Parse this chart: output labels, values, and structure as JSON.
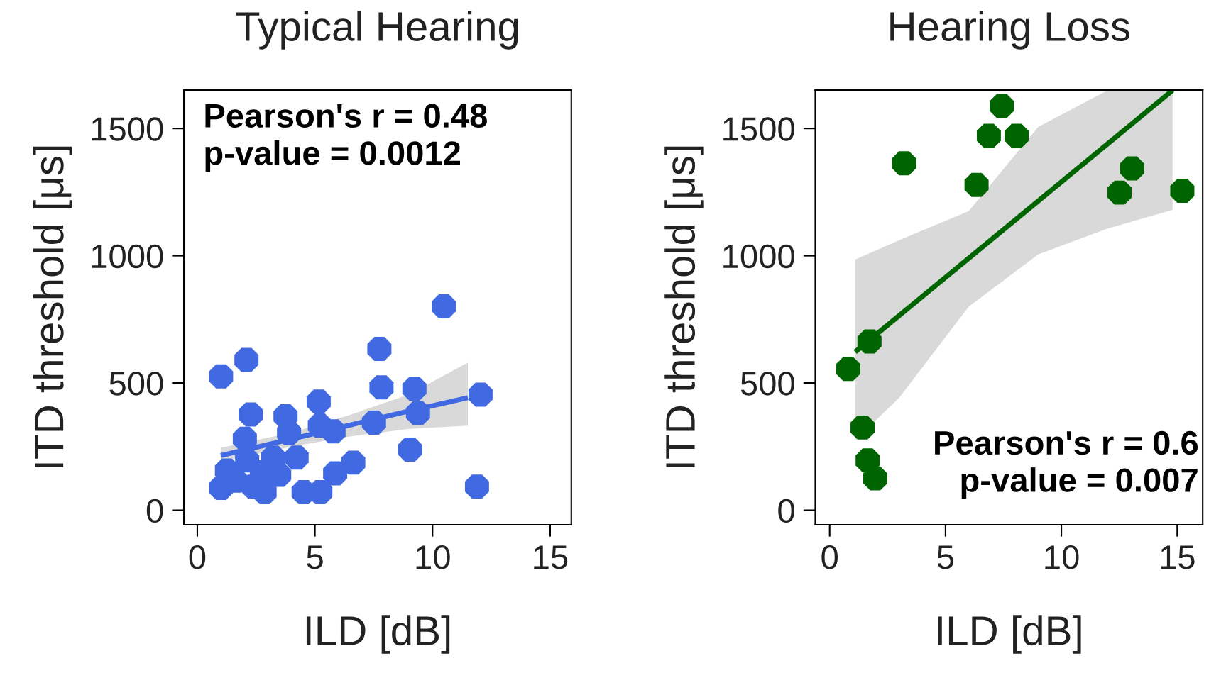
{
  "chart_data": [
    {
      "type": "scatter",
      "title": "Typical Hearing",
      "xlabel": "ILD [dB]",
      "ylabel": "ITD threshold [μs]",
      "xlim": [
        -0.57,
        15.9
      ],
      "ylim": [
        -57,
        1651
      ],
      "xticks": [
        0,
        5,
        10,
        15
      ],
      "yticks": [
        0,
        500,
        1000,
        1500
      ],
      "grid": false,
      "legend": false,
      "annotations": [
        "Pearson's r = 0.48",
        "p-value = 0.0012"
      ],
      "series": [
        {
          "type": "line",
          "marker": "none",
          "color": "#4169e1",
          "x": [
            1,
            4,
            6.5,
            9,
            11.5
          ],
          "values": [
            215,
            280,
            335,
            390,
            442
          ],
          "lower": [
            190,
            250,
            290,
            320,
            332
          ],
          "upper": [
            245,
            305,
            375,
            455,
            580
          ]
        },
        {
          "marker": "circle",
          "color": "#4169e1",
          "x": [
            1.01,
            2.09,
            10.48,
            7.74,
            7.83,
            9.23,
            12.04,
            5.16,
            2.27,
            3.75,
            2.02,
            3.9,
            5.21,
            5.79,
            7.51,
            9.38,
            9.04,
            4.22,
            6.63,
            5.86,
            11.89,
            4.52,
            5.23,
            1.01,
            1.26,
            2.86,
            3.48,
            3.23,
            2.12,
            1.63,
            2.74,
            2.37
          ],
          "values": [
            526,
            591,
            801,
            634,
            483,
            477,
            454,
            427,
            376,
            369,
            281,
            304,
            333,
            310,
            344,
            382,
            238,
            207,
            187,
            145,
            93,
            71,
            71,
            88,
            156,
            71,
            139,
            207,
            196,
            116,
            150,
            93
          ]
        }
      ]
    },
    {
      "type": "scatter",
      "title": "Hearing Loss",
      "xlabel": "ILD [dB]",
      "ylabel": "ITD threshold [μs]",
      "xlim": [
        -0.62,
        16.1
      ],
      "ylim": [
        -57,
        1651
      ],
      "xticks": [
        0,
        5,
        10,
        15
      ],
      "yticks": [
        0,
        500,
        1000,
        1500
      ],
      "grid": false,
      "legend": false,
      "annotations": [
        "Pearson's r = 0.6",
        "p-value = 0.007"
      ],
      "series": [
        {
          "type": "line",
          "marker": "none",
          "color": "#006400",
          "x": [
            1.1,
            3,
            6,
            9,
            12,
            14.8
          ],
          "values": [
            622,
            765,
            990,
            1215,
            1440,
            1650
          ],
          "lower": [
            275,
            442,
            800,
            1005,
            1107,
            1180
          ],
          "upper": [
            985,
            1061,
            1175,
            1506,
            1650,
            1650
          ]
        },
        {
          "marker": "circle",
          "color": "#006400",
          "x": [
            7.43,
            6.87,
            8.07,
            3.21,
            6.34,
            13.05,
            12.51,
            15.22,
            1.72,
            0.8,
            1.42,
            1.64,
            1.97
          ],
          "values": [
            1588,
            1471,
            1471,
            1363,
            1278,
            1343,
            1248,
            1255,
            663,
            555,
            325,
            196,
            125
          ]
        }
      ]
    }
  ]
}
